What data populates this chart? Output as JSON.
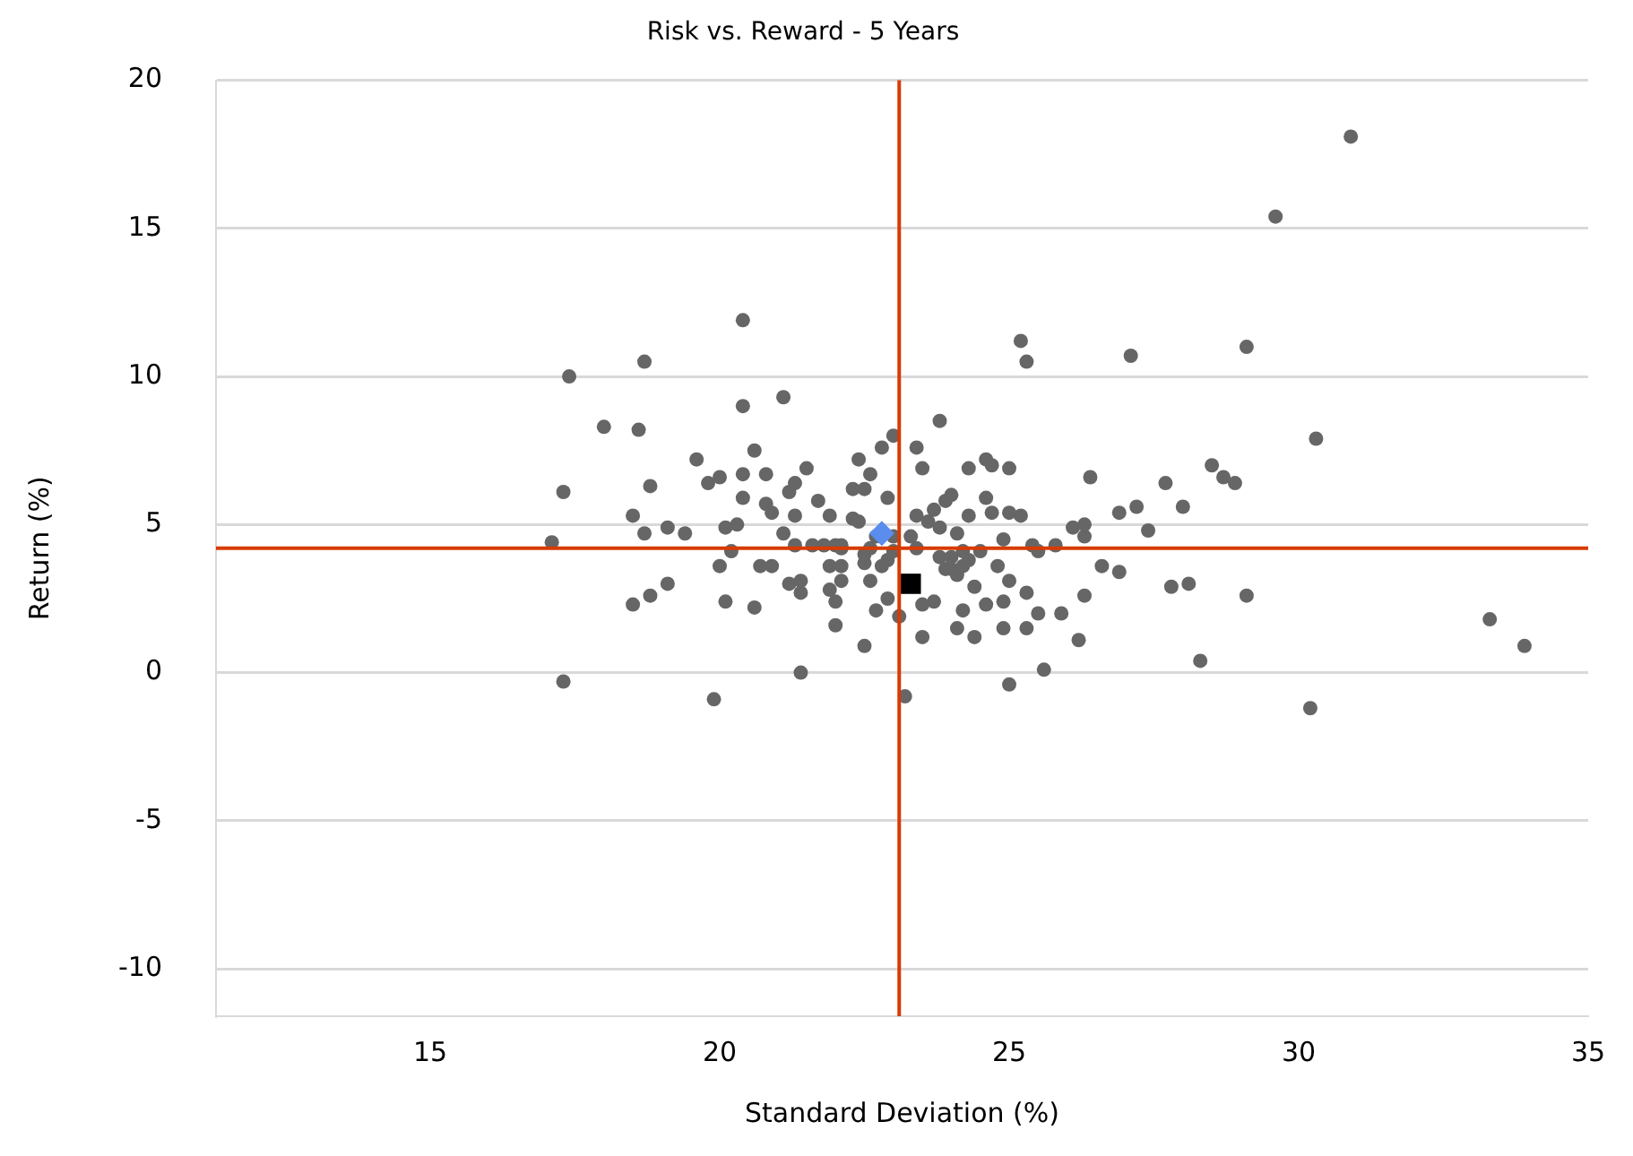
{
  "chart_data": {
    "type": "scatter",
    "title": "Risk vs. Reward - 5 Years",
    "xlabel": "Standard Deviation (%)",
    "ylabel": "Return (%)",
    "xlim": [
      11.3,
      35
    ],
    "xticks": [
      15,
      20,
      25,
      30,
      35
    ],
    "ylim": [
      -11.6,
      20
    ],
    "yticks": [
      -10,
      -5,
      0,
      5,
      10,
      15,
      20
    ],
    "grid": "y",
    "legend": false,
    "ref_lines": [
      {
        "axis": "x",
        "value": 23.1,
        "color": "#d83b01"
      },
      {
        "axis": "y",
        "value": 4.2,
        "color": "#d83b01"
      }
    ],
    "series": [
      {
        "color": "#666666",
        "marker": "circle",
        "x": [
          17.1,
          17.3,
          17.4,
          17.3,
          18.0,
          18.6,
          18.7,
          18.5,
          18.7,
          18.8,
          18.5,
          18.8,
          19.1,
          19.1,
          19.4,
          19.6,
          19.8,
          20.0,
          19.9,
          20.0,
          20.1,
          20.1,
          20.2,
          20.3,
          20.4,
          20.4,
          20.4,
          20.4,
          20.6,
          20.6,
          20.7,
          20.8,
          20.8,
          20.9,
          20.9,
          21.1,
          21.1,
          21.2,
          21.2,
          21.3,
          21.3,
          21.3,
          21.4,
          21.4,
          21.4,
          21.5,
          21.6,
          21.7,
          21.8,
          21.9,
          21.9,
          21.9,
          22.0,
          22.0,
          22.0,
          22.1,
          22.1,
          22.1,
          22.3,
          22.3,
          22.4,
          22.4,
          22.5,
          22.5,
          22.5,
          22.6,
          22.6,
          22.6,
          22.7,
          22.7,
          22.8,
          22.8,
          22.9,
          22.9,
          23.0,
          23.0,
          23.0,
          23.1,
          23.2,
          23.3,
          23.4,
          23.4,
          23.4,
          23.5,
          23.5,
          23.5,
          23.6,
          23.7,
          23.7,
          23.8,
          23.8,
          23.8,
          23.9,
          24.0,
          24.0,
          24.0,
          24.1,
          24.1,
          24.2,
          24.2,
          24.2,
          24.3,
          24.3,
          24.4,
          24.4,
          24.5,
          24.6,
          24.6,
          24.6,
          24.7,
          24.7,
          24.8,
          24.9,
          24.9,
          24.9,
          25.0,
          25.0,
          25.0,
          25.0,
          25.2,
          25.2,
          25.3,
          25.3,
          25.3,
          25.4,
          25.5,
          25.5,
          25.6,
          25.8,
          25.9,
          26.1,
          26.2,
          26.3,
          26.3,
          26.3,
          26.4,
          26.6,
          26.9,
          26.9,
          27.1,
          27.2,
          27.4,
          27.7,
          27.8,
          28.0,
          28.1,
          28.3,
          28.5,
          28.7,
          28.9,
          29.1,
          29.1,
          29.6,
          30.2,
          30.3,
          30.9,
          33.3,
          33.9,
          24.1,
          24.3,
          23.9,
          22.5,
          22.9,
          22.1
        ],
        "values": [
          4.4,
          6.1,
          10.0,
          -0.3,
          8.3,
          8.2,
          10.5,
          5.3,
          4.7,
          6.3,
          2.3,
          2.6,
          3.0,
          4.9,
          4.7,
          7.2,
          6.4,
          6.6,
          -0.9,
          3.6,
          2.4,
          4.9,
          4.1,
          5.0,
          6.7,
          5.9,
          9.0,
          11.9,
          7.5,
          2.2,
          3.6,
          6.7,
          5.7,
          3.6,
          5.4,
          9.3,
          4.7,
          3.0,
          6.1,
          6.4,
          5.3,
          4.3,
          2.7,
          0.0,
          3.1,
          6.9,
          4.3,
          5.8,
          4.3,
          5.3,
          3.6,
          2.8,
          4.3,
          2.4,
          1.6,
          3.1,
          3.6,
          4.2,
          5.2,
          6.2,
          5.1,
          7.2,
          3.7,
          6.2,
          0.9,
          3.1,
          6.7,
          4.2,
          2.1,
          4.6,
          7.6,
          3.6,
          5.9,
          2.5,
          8.0,
          4.6,
          4.1,
          1.9,
          -0.8,
          4.6,
          7.6,
          5.3,
          4.2,
          6.9,
          2.3,
          1.2,
          5.1,
          5.5,
          2.4,
          3.9,
          8.5,
          4.9,
          5.8,
          3.5,
          3.9,
          6.0,
          4.7,
          1.5,
          4.1,
          3.6,
          2.1,
          5.3,
          6.9,
          2.9,
          1.2,
          4.1,
          7.2,
          5.9,
          2.3,
          5.4,
          7.0,
          3.6,
          4.5,
          1.5,
          2.4,
          6.9,
          -0.4,
          3.1,
          5.4,
          5.3,
          11.2,
          10.5,
          2.7,
          1.5,
          4.3,
          2.0,
          4.1,
          0.1,
          4.3,
          2.0,
          4.9,
          1.1,
          2.6,
          4.6,
          5.0,
          6.6,
          3.6,
          3.4,
          5.4,
          10.7,
          5.6,
          4.8,
          6.4,
          2.9,
          5.6,
          3.0,
          0.4,
          7.0,
          6.6,
          6.4,
          2.6,
          11.0,
          15.4,
          -1.2,
          7.9,
          18.1,
          1.8,
          0.9,
          3.3,
          3.8,
          3.5,
          4.0,
          3.8,
          4.3
        ]
      },
      {
        "color": "#5b8def",
        "marker": "diamond",
        "x": [
          22.8
        ],
        "values": [
          4.7
        ]
      },
      {
        "color": "#000000",
        "marker": "square",
        "x": [
          23.3
        ],
        "values": [
          3.0
        ]
      }
    ]
  }
}
